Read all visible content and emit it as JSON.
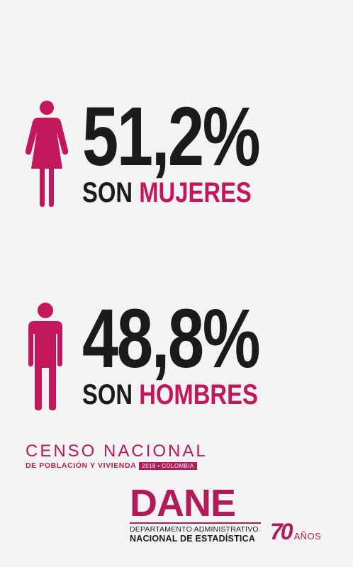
{
  "women": {
    "percent": "51,2%",
    "prefix": "SON",
    "accent": "MUJERES",
    "icon": "woman-icon"
  },
  "men": {
    "percent": "48,8%",
    "prefix": "SON",
    "accent": "HOMBRES",
    "icon": "man-icon"
  },
  "censo": {
    "title": "CENSO NACIONAL",
    "subtitle": "DE POBLACIÓN Y VIVIENDA",
    "tag": "2018 • COLOMBIA"
  },
  "dane": {
    "wordmark": "DANE",
    "line1": "DEPARTAMENTO ADMINISTRATIVO",
    "line2": "NACIONAL DE ESTADÍSTICA"
  },
  "anniversary": {
    "number": "70",
    "word": "AÑOS"
  },
  "colors": {
    "accent": "#c2185b",
    "text": "#1b1b1b",
    "background": "#f4f3f3"
  }
}
